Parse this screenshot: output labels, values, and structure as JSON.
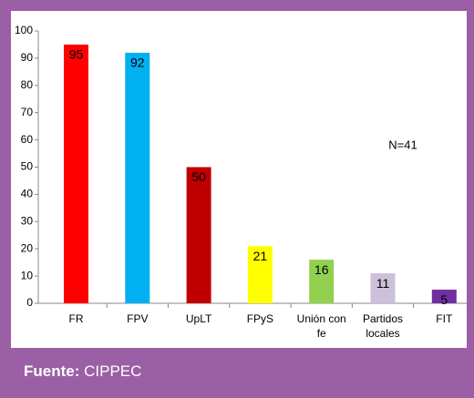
{
  "chart_data": {
    "type": "bar",
    "categories": [
      [
        "FR"
      ],
      [
        "FPV"
      ],
      [
        "UpLT"
      ],
      [
        "FPyS"
      ],
      [
        "Unión con",
        "fe"
      ],
      [
        "Partidos",
        "locales"
      ],
      [
        "FIT"
      ]
    ],
    "values": [
      95,
      92,
      50,
      21,
      16,
      11,
      5
    ],
    "colors": [
      "#ff0000",
      "#00b0f0",
      "#c00000",
      "#ffff00",
      "#92d050",
      "#ccc0da",
      "#7030a0"
    ],
    "ylim": [
      0,
      100
    ],
    "yticks": [
      0,
      10,
      20,
      30,
      40,
      50,
      60,
      70,
      80,
      90,
      100
    ],
    "annotation": "N=41"
  },
  "footer": {
    "label": "Fuente:",
    "source": "CIPPEC"
  }
}
